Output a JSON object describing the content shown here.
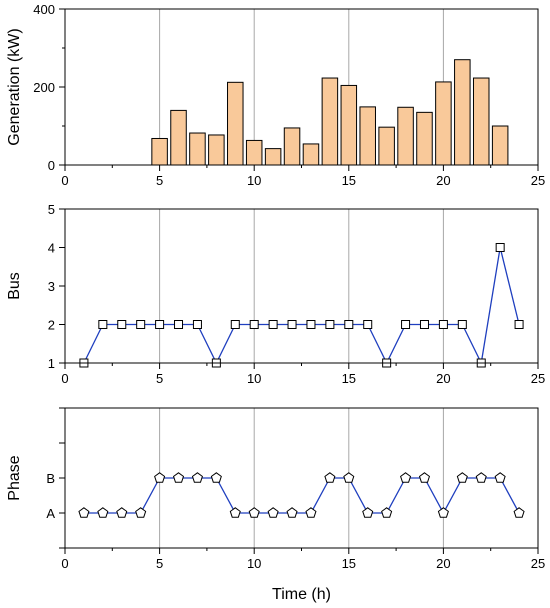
{
  "chart_data": [
    {
      "type": "bar",
      "ylabel": "Generation (kW)",
      "xlabel": "",
      "xlim": [
        0,
        25
      ],
      "ylim": [
        0,
        400
      ],
      "xticks": [
        0,
        5,
        10,
        15,
        20,
        25
      ],
      "yticks": [
        0,
        200,
        400
      ],
      "grid_x": [
        5,
        10,
        15,
        20
      ],
      "bar_color": "#f9c99a",
      "x": [
        5,
        6,
        7,
        8,
        9,
        10,
        11,
        12,
        13,
        14,
        15,
        16,
        17,
        18,
        19,
        20,
        21,
        22,
        23
      ],
      "values": [
        68,
        140,
        82,
        77,
        212,
        63,
        42,
        95,
        54,
        223,
        204,
        149,
        97,
        148,
        135,
        213,
        270,
        223,
        100
      ]
    },
    {
      "type": "line",
      "ylabel": "Bus",
      "xlabel": "",
      "xlim": [
        0,
        25
      ],
      "ylim": [
        1,
        5
      ],
      "xticks": [
        0,
        5,
        10,
        15,
        20,
        25
      ],
      "yticks": [
        1,
        2,
        3,
        4,
        5
      ],
      "grid_x": [
        5,
        10,
        15,
        20
      ],
      "line_color": "#1f3fbf",
      "marker": "square",
      "x": [
        1,
        2,
        3,
        4,
        5,
        6,
        7,
        8,
        9,
        10,
        11,
        12,
        13,
        14,
        15,
        16,
        17,
        18,
        19,
        20,
        21,
        22,
        23,
        24
      ],
      "values": [
        1,
        2,
        2,
        2,
        2,
        2,
        2,
        1,
        2,
        2,
        2,
        2,
        2,
        2,
        2,
        2,
        1,
        2,
        2,
        2,
        2,
        1,
        4,
        2
      ]
    },
    {
      "type": "line",
      "ylabel": "Phase",
      "xlabel": "Time (h)",
      "xlim": [
        0,
        25
      ],
      "ylim": [
        0,
        4
      ],
      "xticks": [
        0,
        5,
        10,
        15,
        20,
        25
      ],
      "yticks": [
        1,
        2
      ],
      "ytick_labels": [
        "A",
        "B"
      ],
      "minor_yticks": [
        0,
        3,
        4
      ],
      "grid_x": [
        5,
        10,
        15,
        20
      ],
      "line_color": "#1f3fbf",
      "marker": "pentagon",
      "x": [
        1,
        2,
        3,
        4,
        5,
        6,
        7,
        8,
        9,
        10,
        11,
        12,
        13,
        14,
        15,
        16,
        17,
        18,
        19,
        20,
        21,
        22,
        23,
        24
      ],
      "values": [
        "A",
        "A",
        "A",
        "A",
        "B",
        "B",
        "B",
        "B",
        "A",
        "A",
        "A",
        "A",
        "A",
        "B",
        "B",
        "A",
        "A",
        "B",
        "B",
        "A",
        "B",
        "B",
        "B",
        "A"
      ]
    }
  ]
}
